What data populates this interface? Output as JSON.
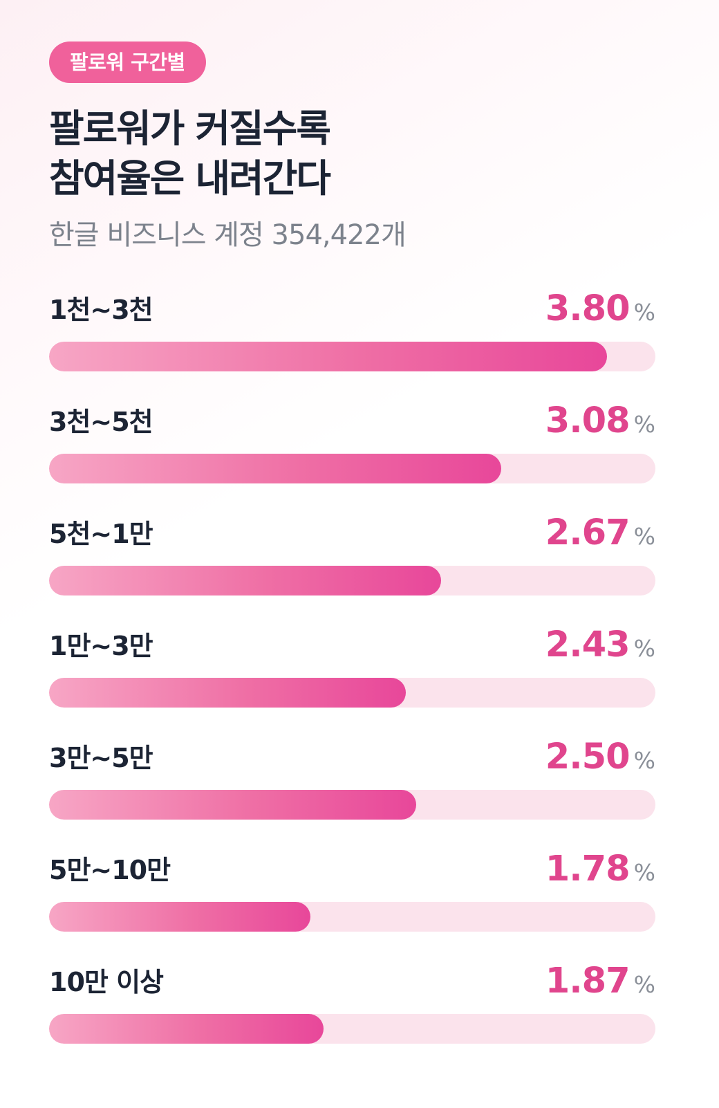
{
  "badge": "팔로워 구간별",
  "title_lines": [
    "팔로워가 커질수록",
    "참여율은 내려간다"
  ],
  "subtitle": "한글 비즈니스 계정 354,422개",
  "unit": "%",
  "colors": {
    "accent": "#e0458d",
    "badge": "#f0619b",
    "track": "#fbe3ec",
    "text_dark": "#1c2434",
    "text_muted": "#7c828c"
  },
  "chart_data": {
    "type": "bar",
    "orientation": "horizontal",
    "categories": [
      "1천~3천",
      "3천~5천",
      "5천~1만",
      "1만~3만",
      "3만~5만",
      "5만~10만",
      "10만 이상"
    ],
    "values": [
      3.8,
      3.08,
      2.67,
      2.43,
      2.5,
      1.78,
      1.87
    ],
    "value_labels": [
      "3.80",
      "3.08",
      "2.67",
      "2.43",
      "2.50",
      "1.78",
      "1.87"
    ],
    "title": "팔로워가 커질수록 참여율은 내려간다",
    "subtitle": "한글 비즈니스 계정 354,422개",
    "unit": "%",
    "xlim": [
      0,
      4.13
    ],
    "grid": false,
    "legend": "none"
  }
}
